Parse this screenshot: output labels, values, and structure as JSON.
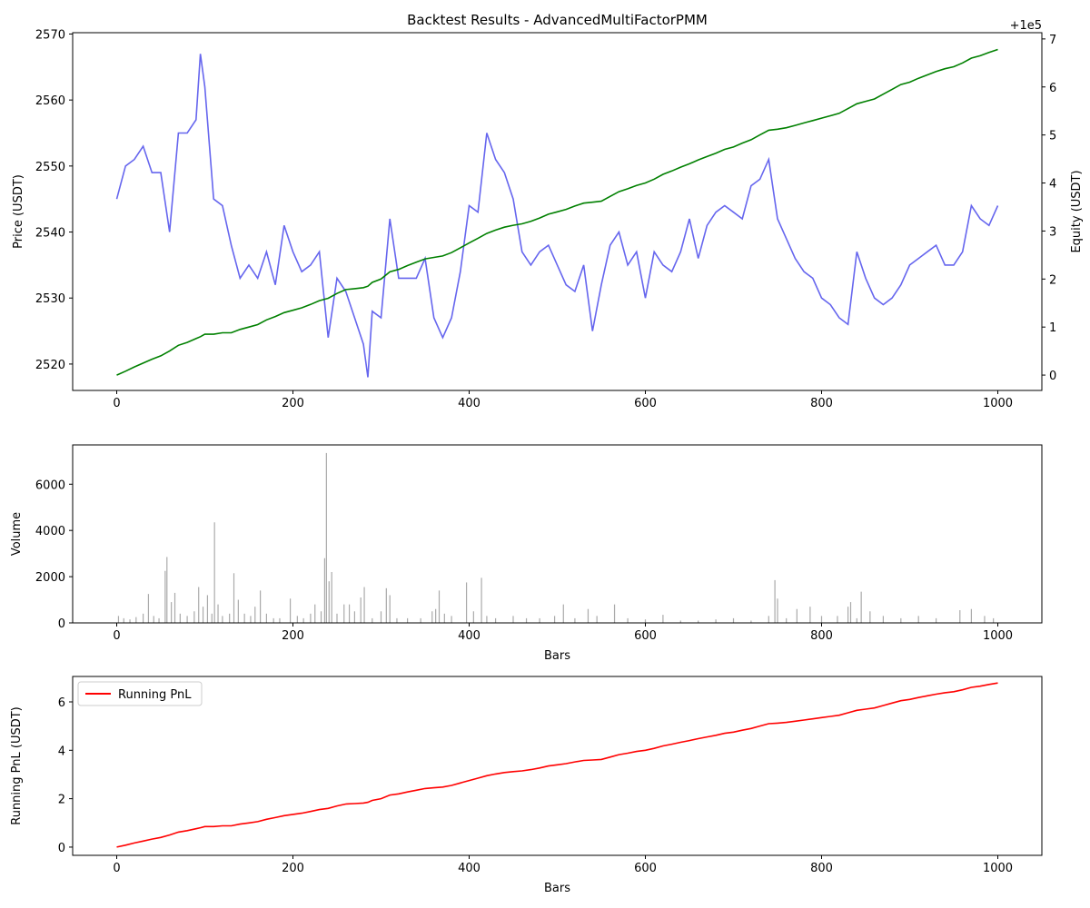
{
  "chart_data": [
    {
      "type": "line",
      "title": "Backtest Results - AdvancedMultiFactorPMM",
      "ylabel": "Price (USDT)",
      "ylabel_color": "blue",
      "y2label": "Equity (USDT)",
      "y2label_color": "green",
      "y2_offset_label": "+1e5",
      "x": [
        0,
        10,
        20,
        30,
        40,
        50,
        60,
        70,
        80,
        90,
        95,
        100,
        110,
        120,
        130,
        140,
        150,
        160,
        170,
        180,
        190,
        200,
        210,
        220,
        230,
        240,
        250,
        260,
        270,
        280,
        285,
        290,
        300,
        310,
        320,
        330,
        340,
        350,
        360,
        370,
        380,
        390,
        400,
        410,
        420,
        430,
        440,
        450,
        460,
        470,
        480,
        490,
        500,
        510,
        520,
        530,
        540,
        550,
        560,
        570,
        580,
        590,
        600,
        610,
        620,
        630,
        640,
        650,
        660,
        670,
        680,
        690,
        700,
        710,
        720,
        730,
        740,
        750,
        760,
        770,
        780,
        790,
        800,
        810,
        820,
        830,
        840,
        850,
        860,
        870,
        880,
        890,
        900,
        910,
        920,
        930,
        940,
        950,
        960,
        970,
        980,
        990,
        1000
      ],
      "series": [
        {
          "name": "Price",
          "color": "#6666ee",
          "values": [
            2545,
            2550,
            2551,
            2553,
            2549,
            2549,
            2540,
            2555,
            2555,
            2557,
            2567,
            2562,
            2545,
            2544,
            2538,
            2533,
            2535,
            2533,
            2537,
            2532,
            2541,
            2537,
            2534,
            2535,
            2537,
            2524,
            2533,
            2531,
            2527,
            2523,
            2518,
            2528,
            2527,
            2542,
            2533,
            2533,
            2533,
            2536,
            2527,
            2524,
            2527,
            2534,
            2544,
            2543,
            2555,
            2551,
            2549,
            2545,
            2537,
            2535,
            2537,
            2538,
            2535,
            2532,
            2531,
            2535,
            2525,
            2532,
            2538,
            2540,
            2535,
            2537,
            2530,
            2537,
            2535,
            2534,
            2537,
            2542,
            2536,
            2541,
            2543,
            2544,
            2543,
            2542,
            2547,
            2548,
            2551,
            2542,
            2539,
            2536,
            2534,
            2533,
            2530,
            2529,
            2527,
            2526,
            2537,
            2533,
            2530,
            2529,
            2530,
            2532,
            2535,
            2536,
            2537,
            2538,
            2535,
            2535,
            2537,
            2544,
            2542,
            2541,
            2544
          ]
        },
        {
          "name": "Equity",
          "color": "green",
          "axis": "y2",
          "values": [
            0,
            0.08,
            0.17,
            0.25,
            0.33,
            0.4,
            0.5,
            0.62,
            0.68,
            0.76,
            0.8,
            0.85,
            0.85,
            0.88,
            0.88,
            0.95,
            1.0,
            1.05,
            1.15,
            1.22,
            1.3,
            1.35,
            1.4,
            1.47,
            1.55,
            1.6,
            1.7,
            1.78,
            1.8,
            1.82,
            1.85,
            1.93,
            2.0,
            2.15,
            2.2,
            2.28,
            2.35,
            2.42,
            2.45,
            2.48,
            2.55,
            2.65,
            2.75,
            2.85,
            2.95,
            3.02,
            3.08,
            3.12,
            3.15,
            3.2,
            3.27,
            3.35,
            3.4,
            3.45,
            3.52,
            3.58,
            3.6,
            3.62,
            3.72,
            3.82,
            3.88,
            3.95,
            4.0,
            4.08,
            4.18,
            4.25,
            4.33,
            4.4,
            4.48,
            4.55,
            4.62,
            4.7,
            4.75,
            4.83,
            4.9,
            5.0,
            5.1,
            5.12,
            5.15,
            5.2,
            5.25,
            5.3,
            5.35,
            5.4,
            5.45,
            5.55,
            5.65,
            5.7,
            5.75,
            5.85,
            5.95,
            6.05,
            6.1,
            6.18,
            6.25,
            6.32,
            6.38,
            6.42,
            6.5,
            6.6,
            6.65,
            6.72,
            6.78
          ]
        }
      ],
      "xlim": [
        -50,
        1050
      ],
      "xticks": [
        0,
        200,
        400,
        600,
        800,
        1000
      ],
      "ylim": [
        2516,
        2570.2
      ],
      "yticks": [
        2520,
        2530,
        2540,
        2550,
        2560,
        2570
      ],
      "y2lim": [
        -0.32,
        7.13
      ],
      "y2ticks": [
        0,
        1,
        2,
        3,
        4,
        5,
        6,
        7
      ]
    },
    {
      "type": "bar",
      "ylabel": "Volume",
      "xlabel": "Bars",
      "x": [
        2,
        8,
        15,
        22,
        30,
        36,
        42,
        48,
        55,
        57,
        62,
        66,
        72,
        80,
        88,
        93,
        98,
        103,
        108,
        111,
        115,
        120,
        128,
        133,
        138,
        145,
        152,
        157,
        163,
        170,
        178,
        185,
        197,
        205,
        212,
        220,
        225,
        232,
        236,
        238,
        241,
        244,
        250,
        258,
        264,
        270,
        277,
        281,
        290,
        300,
        306,
        310,
        318,
        330,
        345,
        358,
        362,
        366,
        372,
        380,
        397,
        405,
        414,
        420,
        430,
        450,
        465,
        480,
        497,
        507,
        520,
        535,
        545,
        565,
        580,
        600,
        620,
        640,
        660,
        680,
        700,
        720,
        740,
        747,
        750,
        760,
        772,
        787,
        800,
        818,
        830,
        833,
        840,
        845,
        855,
        870,
        890,
        910,
        930,
        957,
        970,
        985,
        995
      ],
      "series": [
        {
          "name": "Volume",
          "color": "#aaaaaa",
          "values": [
            300,
            200,
            150,
            250,
            400,
            1250,
            300,
            200,
            2250,
            2850,
            900,
            1300,
            400,
            300,
            500,
            1550,
            700,
            1200,
            400,
            4350,
            800,
            300,
            400,
            2150,
            1000,
            400,
            300,
            700,
            1400,
            400,
            200,
            200,
            1050,
            300,
            200,
            400,
            800,
            500,
            2800,
            7350,
            1800,
            2200,
            400,
            800,
            800,
            500,
            1100,
            1550,
            200,
            500,
            1500,
            1200,
            200,
            200,
            200,
            500,
            600,
            1400,
            400,
            300,
            1750,
            500,
            1950,
            300,
            200,
            300,
            200,
            200,
            300,
            800,
            200,
            600,
            300,
            800,
            200,
            150,
            350,
            100,
            100,
            150,
            200,
            100,
            300,
            1850,
            1050,
            200,
            600,
            700,
            300,
            300,
            700,
            900,
            200,
            1350,
            500,
            300,
            200,
            300,
            200,
            550,
            600,
            300,
            200
          ]
        }
      ],
      "xlim": [
        -50,
        1050
      ],
      "xticks": [
        0,
        200,
        400,
        600,
        800,
        1000
      ],
      "ylim": [
        0,
        7700
      ],
      "yticks": [
        0,
        2000,
        4000,
        6000
      ]
    },
    {
      "type": "line",
      "ylabel": "Running PnL (USDT)",
      "ylabel_color": "red",
      "xlabel": "Bars",
      "legend": "upper left",
      "x": [
        0,
        10,
        20,
        30,
        40,
        50,
        60,
        70,
        80,
        90,
        95,
        100,
        110,
        120,
        130,
        140,
        150,
        160,
        170,
        180,
        190,
        200,
        210,
        220,
        230,
        240,
        250,
        260,
        270,
        280,
        285,
        290,
        300,
        310,
        320,
        330,
        340,
        350,
        360,
        370,
        380,
        390,
        400,
        410,
        420,
        430,
        440,
        450,
        460,
        470,
        480,
        490,
        500,
        510,
        520,
        530,
        540,
        550,
        560,
        570,
        580,
        590,
        600,
        610,
        620,
        630,
        640,
        650,
        660,
        670,
        680,
        690,
        700,
        710,
        720,
        730,
        740,
        750,
        760,
        770,
        780,
        790,
        800,
        810,
        820,
        830,
        840,
        850,
        860,
        870,
        880,
        890,
        900,
        910,
        920,
        930,
        940,
        950,
        960,
        970,
        980,
        990,
        1000
      ],
      "series": [
        {
          "name": "Running PnL",
          "color": "red",
          "values": [
            0,
            0.08,
            0.17,
            0.25,
            0.33,
            0.4,
            0.5,
            0.62,
            0.68,
            0.76,
            0.8,
            0.85,
            0.85,
            0.88,
            0.88,
            0.95,
            1.0,
            1.05,
            1.15,
            1.22,
            1.3,
            1.35,
            1.4,
            1.47,
            1.55,
            1.6,
            1.7,
            1.78,
            1.8,
            1.82,
            1.85,
            1.93,
            2.0,
            2.15,
            2.2,
            2.28,
            2.35,
            2.42,
            2.45,
            2.48,
            2.55,
            2.65,
            2.75,
            2.85,
            2.95,
            3.02,
            3.08,
            3.12,
            3.15,
            3.2,
            3.27,
            3.35,
            3.4,
            3.45,
            3.52,
            3.58,
            3.6,
            3.62,
            3.72,
            3.82,
            3.88,
            3.95,
            4.0,
            4.08,
            4.18,
            4.25,
            4.33,
            4.4,
            4.48,
            4.55,
            4.62,
            4.7,
            4.75,
            4.83,
            4.9,
            5.0,
            5.1,
            5.12,
            5.15,
            5.2,
            5.25,
            5.3,
            5.35,
            5.4,
            5.45,
            5.55,
            5.65,
            5.7,
            5.75,
            5.85,
            5.95,
            6.05,
            6.1,
            6.18,
            6.25,
            6.32,
            6.38,
            6.42,
            6.5,
            6.6,
            6.65,
            6.72,
            6.78
          ]
        }
      ],
      "xlim": [
        -50,
        1050
      ],
      "xticks": [
        0,
        200,
        400,
        600,
        800,
        1000
      ],
      "ylim": [
        -0.34,
        7.05
      ],
      "yticks": [
        0,
        2,
        4,
        6
      ]
    }
  ]
}
